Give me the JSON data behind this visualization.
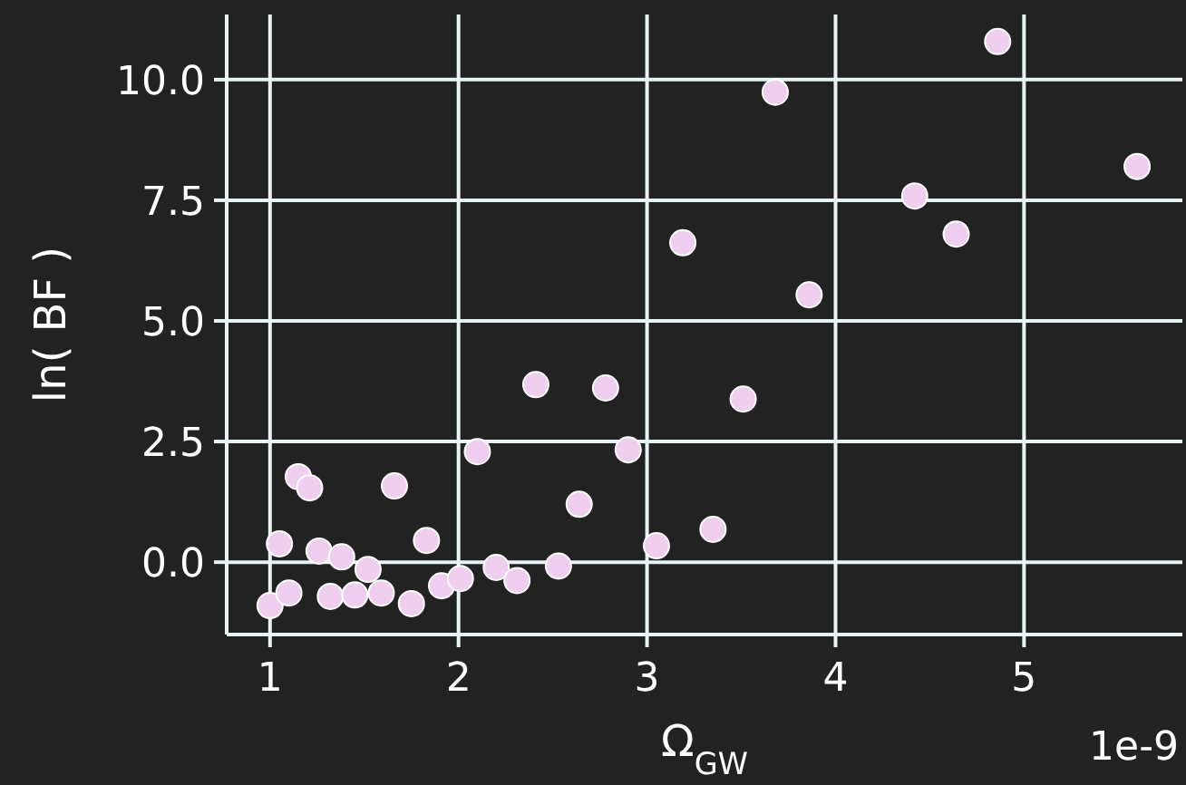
{
  "chart_data": {
    "type": "scatter",
    "xlabel": "Ω$_{GW}$",
    "ylabel": "ln( BF )",
    "annotations": [
      "1e-9"
    ],
    "x": [
      1.0,
      1.05,
      1.1,
      1.15,
      1.21,
      1.26,
      1.32,
      1.38,
      1.45,
      1.52,
      1.59,
      1.66,
      1.75,
      1.83,
      1.91,
      2.01,
      2.1,
      2.2,
      2.31,
      2.41,
      2.53,
      2.64,
      2.78,
      2.9,
      3.05,
      3.19,
      3.35,
      3.51,
      3.68,
      3.86,
      4.42,
      4.64,
      4.86,
      5.6
    ],
    "values": [
      -0.9,
      0.38,
      -0.64,
      1.77,
      1.54,
      0.23,
      -0.71,
      0.11,
      -0.68,
      -0.15,
      -0.64,
      1.58,
      -0.86,
      0.45,
      -0.49,
      -0.34,
      2.29,
      -0.11,
      -0.38,
      3.68,
      -0.08,
      1.2,
      3.61,
      2.33,
      0.34,
      6.62,
      0.68,
      3.38,
      9.74,
      5.54,
      7.59,
      6.8,
      10.79,
      8.2
    ],
    "color": "#f0cef0",
    "marker": "circle",
    "grid": true,
    "xlim": [
      0.77,
      5.84
    ],
    "xticks": [
      1,
      2,
      3,
      4,
      5
    ],
    "ylim": [
      -1.5,
      11.35
    ],
    "yticks": [
      {
        "value": 0,
        "label": "0.0"
      },
      {
        "value": 2.5,
        "label": "2.5"
      },
      {
        "value": 5,
        "label": "5.0"
      },
      {
        "value": 7.5,
        "label": "7.5"
      },
      {
        "value": 10,
        "label": "10.0"
      }
    ]
  }
}
